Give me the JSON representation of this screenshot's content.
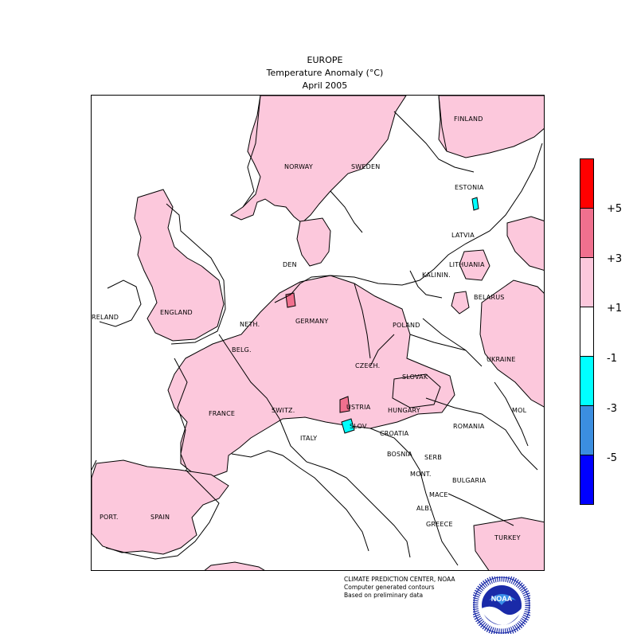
{
  "header": {
    "line1": "EUROPE",
    "line2": "Temperature Anomaly (°C)",
    "line3": "April 2005"
  },
  "colors": {
    "plus5": "#ff0000",
    "plus3": "#f0708e",
    "plus1": "#fcc8dc",
    "zero": "#ffffff",
    "minus1": "#00ffff",
    "minus3": "#3b8ee0",
    "minus5": "#0000ff"
  },
  "legend": {
    "labels": [
      "+5",
      "+3",
      "+1",
      "-1",
      "-3",
      "-5"
    ]
  },
  "countries": {
    "finland": "FINLAND",
    "norway": "NORWAY",
    "sweden": "SWEDEN",
    "estonia": "ESTONIA",
    "latvia": "LATVIA",
    "lithuania": "LITHUANIA",
    "denmark": "DEN",
    "kaliningrad": "KALININ.",
    "belarus": "BELARUS",
    "ireland": "RELAND",
    "england": "ENGLAND",
    "netherlands": "NETH.",
    "germany": "GERMANY",
    "poland": "POLAND",
    "belgium": "BELG.",
    "czech": "CZECH.",
    "ukraine": "UKRAINE",
    "slovakia": "SLOVAK",
    "france": "FRANCE",
    "switzerland": "SWITZ.",
    "austria": "USTRIA",
    "hungary": "HUNGARY",
    "moldova": "MOL",
    "romania": "ROMANIA",
    "italy": "ITALY",
    "slovenia": "SLOV.",
    "croatia": "CROATIA",
    "bosnia": "BOSNIA",
    "serbia": "SERB",
    "montenegro": "MONT.",
    "bulgaria": "BULGARIA",
    "macedonia": "MACE",
    "albania": "ALB.",
    "portugal": "PORT.",
    "spain": "SPAIN",
    "greece": "GREECE",
    "turkey": "TURKEY"
  },
  "credits": {
    "line1": "CLIMATE PREDICTION CENTER, NOAA",
    "line2": "Computer generated contours",
    "line3": "Based on preliminary data"
  },
  "logo": {
    "text": "NOAA"
  }
}
